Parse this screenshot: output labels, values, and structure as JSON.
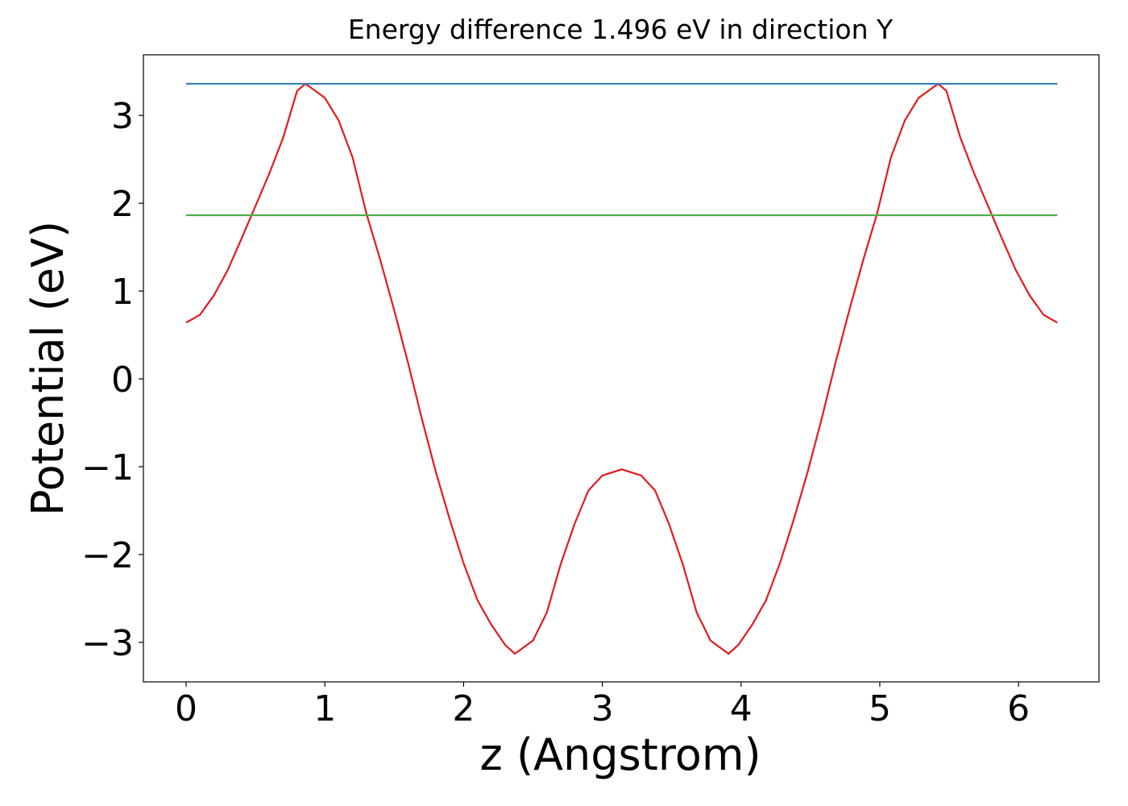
{
  "chart_data": {
    "type": "line",
    "title": "Energy difference 1.496 eV in direction Y",
    "x_label": "z (Angstrom)",
    "y_label": "Potential (eV)",
    "xlim": [
      -0.308,
      6.58
    ],
    "ylim": [
      -3.45,
      3.69
    ],
    "xticks": [
      0,
      1,
      2,
      3,
      4,
      5,
      6
    ],
    "yticks": [
      {
        "value": -3,
        "label": "−3"
      },
      {
        "value": -2,
        "label": "−2"
      },
      {
        "value": -1,
        "label": "−1"
      },
      0,
      1,
      2,
      3
    ],
    "series": [
      {
        "color": "#e41a1c",
        "x": [
          0,
          0.1,
          0.2,
          0.3,
          0.4,
          0.5,
          0.6,
          0.7,
          0.8,
          0.86,
          1.0,
          1.1,
          1.2,
          1.3,
          1.4,
          1.5,
          1.6,
          1.7,
          1.8,
          1.9,
          2.0,
          2.1,
          2.2,
          2.3,
          2.37,
          2.5,
          2.6,
          2.7,
          2.8,
          2.9,
          3.0,
          3.14,
          3.28,
          3.38,
          3.48,
          3.58,
          3.68,
          3.78,
          3.91,
          3.98,
          4.08,
          4.18,
          4.28,
          4.38,
          4.48,
          4.58,
          4.68,
          4.78,
          4.88,
          4.98,
          5.08,
          5.18,
          5.28,
          5.42,
          5.48,
          5.58,
          5.68,
          5.78,
          5.88,
          5.98,
          6.08,
          6.18,
          6.28
        ],
        "values": [
          0.64,
          0.73,
          0.95,
          1.24,
          1.6,
          1.97,
          2.34,
          2.75,
          3.28,
          3.36,
          3.2,
          2.94,
          2.52,
          1.88,
          1.35,
          0.78,
          0.18,
          -0.46,
          -1.06,
          -1.6,
          -2.1,
          -2.52,
          -2.8,
          -3.03,
          -3.13,
          -2.98,
          -2.66,
          -2.11,
          -1.65,
          -1.27,
          -1.1,
          -1.03,
          -1.1,
          -1.27,
          -1.65,
          -2.11,
          -2.66,
          -2.98,
          -3.13,
          -3.03,
          -2.8,
          -2.52,
          -2.1,
          -1.6,
          -1.06,
          -0.46,
          0.18,
          0.78,
          1.35,
          1.88,
          2.52,
          2.94,
          3.2,
          3.36,
          3.28,
          2.75,
          2.34,
          1.97,
          1.6,
          1.24,
          0.95,
          0.73,
          0.64
        ]
      },
      {
        "color": "#377eb8",
        "x": [
          0,
          6.28
        ],
        "values": [
          3.36,
          3.36
        ]
      },
      {
        "color": "#4daf4a",
        "x": [
          0,
          6.28
        ],
        "values": [
          1.864,
          1.864
        ]
      }
    ]
  }
}
